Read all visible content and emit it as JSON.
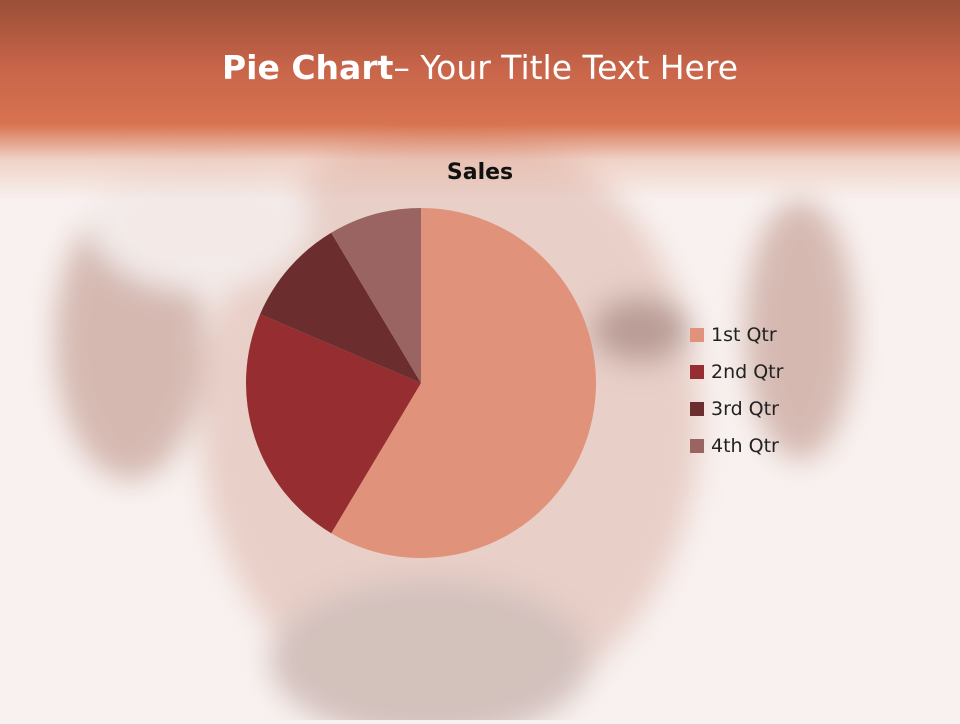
{
  "slide": {
    "title_bold": "Pie Chart",
    "title_rest": "– Your Title Text Here"
  },
  "chart_data": {
    "type": "pie",
    "title": "Sales",
    "categories": [
      "1st Qtr",
      "2nd Qtr",
      "3rd Qtr",
      "4th Qtr"
    ],
    "values": [
      8.2,
      3.2,
      1.4,
      1.2
    ],
    "colors": [
      "#e0927a",
      "#962d30",
      "#6b2d2e",
      "#9a6462"
    ],
    "legend_position": "right"
  }
}
